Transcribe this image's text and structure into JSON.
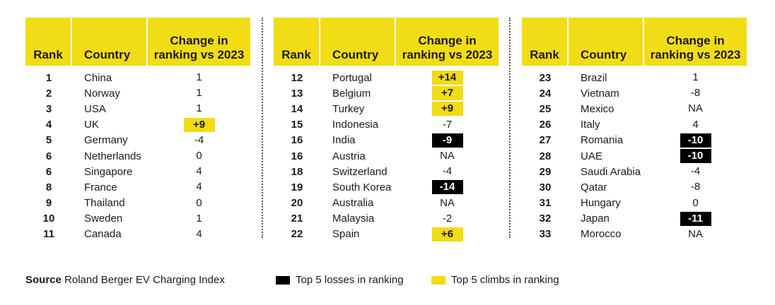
{
  "headers": {
    "rank": "Rank",
    "country": "Country",
    "change": "Change in ranking vs 2023"
  },
  "panels": [
    {
      "rows": [
        {
          "rank": "1",
          "country": "China",
          "change": "1",
          "highlight": "none"
        },
        {
          "rank": "2",
          "country": "Norway",
          "change": "1",
          "highlight": "none"
        },
        {
          "rank": "3",
          "country": "USA",
          "change": "1",
          "highlight": "none"
        },
        {
          "rank": "4",
          "country": "UK",
          "change": "+9",
          "highlight": "climb"
        },
        {
          "rank": "5",
          "country": "Germany",
          "change": "-4",
          "highlight": "none"
        },
        {
          "rank": "6",
          "country": "Netherlands",
          "change": "0",
          "highlight": "none"
        },
        {
          "rank": "6",
          "country": "Singapore",
          "change": "4",
          "highlight": "none"
        },
        {
          "rank": "8",
          "country": "France",
          "change": "4",
          "highlight": "none"
        },
        {
          "rank": "9",
          "country": "Thailand",
          "change": "0",
          "highlight": "none"
        },
        {
          "rank": "10",
          "country": "Sweden",
          "change": "1",
          "highlight": "none"
        },
        {
          "rank": "11",
          "country": "Canada",
          "change": "4",
          "highlight": "none"
        }
      ]
    },
    {
      "rows": [
        {
          "rank": "12",
          "country": "Portugal",
          "change": "+14",
          "highlight": "climb"
        },
        {
          "rank": "13",
          "country": "Belgium",
          "change": "+7",
          "highlight": "climb"
        },
        {
          "rank": "14",
          "country": "Turkey",
          "change": "+9",
          "highlight": "climb"
        },
        {
          "rank": "15",
          "country": "Indonesia",
          "change": "-7",
          "highlight": "none"
        },
        {
          "rank": "16",
          "country": "India",
          "change": "-9",
          "highlight": "loss"
        },
        {
          "rank": "16",
          "country": "Austria",
          "change": "NA",
          "highlight": "none"
        },
        {
          "rank": "18",
          "country": "Switzerland",
          "change": "-4",
          "highlight": "none"
        },
        {
          "rank": "19",
          "country": "South Korea",
          "change": "-14",
          "highlight": "loss"
        },
        {
          "rank": "20",
          "country": "Australia",
          "change": "NA",
          "highlight": "none"
        },
        {
          "rank": "21",
          "country": "Malaysia",
          "change": "-2",
          "highlight": "none"
        },
        {
          "rank": "22",
          "country": "Spain",
          "change": "+6",
          "highlight": "climb"
        }
      ]
    },
    {
      "rows": [
        {
          "rank": "23",
          "country": "Brazil",
          "change": "1",
          "highlight": "none"
        },
        {
          "rank": "24",
          "country": "Vietnam",
          "change": "-8",
          "highlight": "none"
        },
        {
          "rank": "25",
          "country": "Mexico",
          "change": "NA",
          "highlight": "none"
        },
        {
          "rank": "26",
          "country": "Italy",
          "change": "4",
          "highlight": "none"
        },
        {
          "rank": "27",
          "country": "Romania",
          "change": "-10",
          "highlight": "loss"
        },
        {
          "rank": "28",
          "country": "UAE",
          "change": "-10",
          "highlight": "loss"
        },
        {
          "rank": "29",
          "country": "Saudi Arabia",
          "change": "-4",
          "highlight": "none"
        },
        {
          "rank": "30",
          "country": "Qatar",
          "change": "-8",
          "highlight": "none"
        },
        {
          "rank": "31",
          "country": "Hungary",
          "change": "0",
          "highlight": "none"
        },
        {
          "rank": "32",
          "country": "Japan",
          "change": "-11",
          "highlight": "loss"
        },
        {
          "rank": "33",
          "country": "Morocco",
          "change": "NA",
          "highlight": "none"
        }
      ]
    }
  ],
  "footer": {
    "source_label": "Source",
    "source_text": "Roland Berger EV Charging Index",
    "legend_losses": "Top 5 losses in ranking",
    "legend_climbs": "Top 5 climbs in ranking"
  },
  "colors": {
    "climb": "#f2dc14",
    "loss": "#000000"
  }
}
